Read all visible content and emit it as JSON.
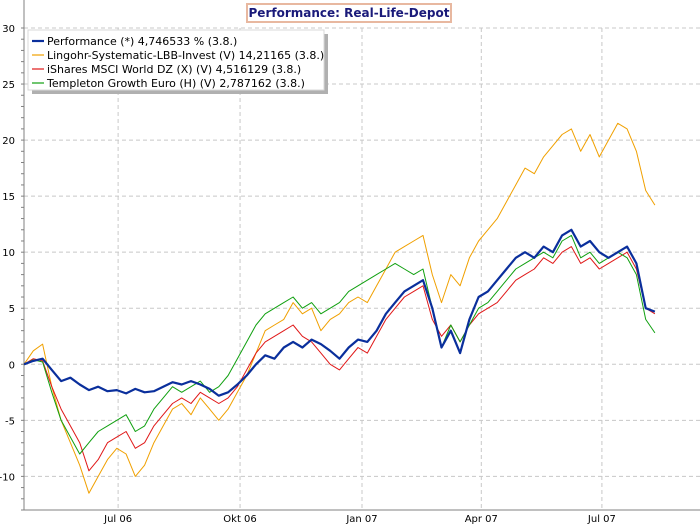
{
  "chart_data": {
    "type": "line",
    "title": "Performance: Real-Life-Depot",
    "xlabel": "",
    "ylabel": "",
    "x_ticks": [
      "Jul 06",
      "Okt 06",
      "Jan 07",
      "Apr 07",
      "Jul 07"
    ],
    "x_range": [
      "2006-04-21",
      "2007-09-13"
    ],
    "ylim": [
      -13,
      30
    ],
    "y_ticks": [
      30,
      25,
      20,
      15,
      10,
      5,
      0,
      -5,
      -10
    ],
    "grid": true,
    "legend_position": "top-left",
    "series": [
      {
        "name": "Performance (*) 4,746533 % (3.8.)",
        "color": "#0a2f9c",
        "bold": true,
        "points": [
          [
            "2006-04-21",
            0.0
          ],
          [
            "2006-04-28",
            0.3
          ],
          [
            "2006-05-05",
            0.5
          ],
          [
            "2006-05-12",
            -0.5
          ],
          [
            "2006-05-19",
            -1.5
          ],
          [
            "2006-05-26",
            -1.2
          ],
          [
            "2006-06-02",
            -1.8
          ],
          [
            "2006-06-09",
            -2.3
          ],
          [
            "2006-06-16",
            -2.0
          ],
          [
            "2006-06-23",
            -2.4
          ],
          [
            "2006-06-30",
            -2.3
          ],
          [
            "2006-07-07",
            -2.6
          ],
          [
            "2006-07-14",
            -2.2
          ],
          [
            "2006-07-21",
            -2.5
          ],
          [
            "2006-07-28",
            -2.4
          ],
          [
            "2006-08-04",
            -2.0
          ],
          [
            "2006-08-11",
            -1.6
          ],
          [
            "2006-08-18",
            -1.8
          ],
          [
            "2006-08-25",
            -1.5
          ],
          [
            "2006-09-01",
            -1.8
          ],
          [
            "2006-09-08",
            -2.2
          ],
          [
            "2006-09-15",
            -2.8
          ],
          [
            "2006-09-22",
            -2.5
          ],
          [
            "2006-09-29",
            -1.8
          ],
          [
            "2006-10-06",
            -1.0
          ],
          [
            "2006-10-13",
            0.0
          ],
          [
            "2006-10-20",
            0.8
          ],
          [
            "2006-10-27",
            0.5
          ],
          [
            "2006-11-03",
            1.5
          ],
          [
            "2006-11-10",
            2.0
          ],
          [
            "2006-11-17",
            1.5
          ],
          [
            "2006-11-24",
            2.2
          ],
          [
            "2006-12-01",
            1.8
          ],
          [
            "2006-12-08",
            1.2
          ],
          [
            "2006-12-15",
            0.5
          ],
          [
            "2006-12-22",
            1.5
          ],
          [
            "2006-12-29",
            2.2
          ],
          [
            "2007-01-05",
            2.0
          ],
          [
            "2007-01-12",
            3.0
          ],
          [
            "2007-01-19",
            4.5
          ],
          [
            "2007-01-26",
            5.5
          ],
          [
            "2007-02-02",
            6.5
          ],
          [
            "2007-02-09",
            7.0
          ],
          [
            "2007-02-16",
            7.5
          ],
          [
            "2007-02-23",
            5.0
          ],
          [
            "2007-03-02",
            1.5
          ],
          [
            "2007-03-09",
            3.0
          ],
          [
            "2007-03-16",
            1.0
          ],
          [
            "2007-03-23",
            4.0
          ],
          [
            "2007-03-30",
            6.0
          ],
          [
            "2007-04-06",
            6.5
          ],
          [
            "2007-04-13",
            7.5
          ],
          [
            "2007-04-20",
            8.5
          ],
          [
            "2007-04-27",
            9.5
          ],
          [
            "2007-05-04",
            10.0
          ],
          [
            "2007-05-11",
            9.5
          ],
          [
            "2007-05-18",
            10.5
          ],
          [
            "2007-05-25",
            10.0
          ],
          [
            "2007-06-01",
            11.5
          ],
          [
            "2007-06-08",
            12.0
          ],
          [
            "2007-06-15",
            10.5
          ],
          [
            "2007-06-22",
            11.0
          ],
          [
            "2007-06-29",
            10.0
          ],
          [
            "2007-07-06",
            9.5
          ],
          [
            "2007-07-13",
            10.0
          ],
          [
            "2007-07-20",
            10.5
          ],
          [
            "2007-07-27",
            9.0
          ],
          [
            "2007-08-03",
            5.0
          ],
          [
            "2007-08-10",
            4.7
          ]
        ]
      },
      {
        "name": "Lingohr-Systematic-LBB-Invest (V) 14,21165 (3.8.)",
        "color": "#f0a000",
        "bold": false,
        "points": [
          [
            "2006-04-21",
            0.0
          ],
          [
            "2006-04-28",
            1.2
          ],
          [
            "2006-05-05",
            1.8
          ],
          [
            "2006-05-12",
            -2.0
          ],
          [
            "2006-05-19",
            -5.0
          ],
          [
            "2006-05-26",
            -7.0
          ],
          [
            "2006-06-02",
            -9.0
          ],
          [
            "2006-06-09",
            -11.5
          ],
          [
            "2006-06-16",
            -10.0
          ],
          [
            "2006-06-23",
            -8.5
          ],
          [
            "2006-06-30",
            -7.5
          ],
          [
            "2006-07-07",
            -8.0
          ],
          [
            "2006-07-14",
            -10.0
          ],
          [
            "2006-07-21",
            -9.0
          ],
          [
            "2006-07-28",
            -7.0
          ],
          [
            "2006-08-04",
            -5.5
          ],
          [
            "2006-08-11",
            -4.0
          ],
          [
            "2006-08-18",
            -3.5
          ],
          [
            "2006-08-25",
            -4.5
          ],
          [
            "2006-09-01",
            -3.0
          ],
          [
            "2006-09-08",
            -4.0
          ],
          [
            "2006-09-15",
            -5.0
          ],
          [
            "2006-09-22",
            -4.0
          ],
          [
            "2006-09-29",
            -2.5
          ],
          [
            "2006-10-06",
            -1.0
          ],
          [
            "2006-10-13",
            1.0
          ],
          [
            "2006-10-20",
            3.0
          ],
          [
            "2006-10-27",
            3.5
          ],
          [
            "2006-11-03",
            4.0
          ],
          [
            "2006-11-10",
            5.5
          ],
          [
            "2006-11-17",
            4.5
          ],
          [
            "2006-11-24",
            5.0
          ],
          [
            "2006-12-01",
            3.0
          ],
          [
            "2006-12-08",
            4.0
          ],
          [
            "2006-12-15",
            4.5
          ],
          [
            "2006-12-22",
            5.5
          ],
          [
            "2006-12-29",
            6.0
          ],
          [
            "2007-01-05",
            5.5
          ],
          [
            "2007-01-12",
            7.0
          ],
          [
            "2007-01-19",
            8.5
          ],
          [
            "2007-01-26",
            10.0
          ],
          [
            "2007-02-02",
            10.5
          ],
          [
            "2007-02-09",
            11.0
          ],
          [
            "2007-02-16",
            11.5
          ],
          [
            "2007-02-23",
            8.0
          ],
          [
            "2007-03-02",
            5.5
          ],
          [
            "2007-03-09",
            8.0
          ],
          [
            "2007-03-16",
            7.0
          ],
          [
            "2007-03-23",
            9.5
          ],
          [
            "2007-03-30",
            11.0
          ],
          [
            "2007-04-06",
            12.0
          ],
          [
            "2007-04-13",
            13.0
          ],
          [
            "2007-04-20",
            14.5
          ],
          [
            "2007-04-27",
            16.0
          ],
          [
            "2007-05-04",
            17.5
          ],
          [
            "2007-05-11",
            17.0
          ],
          [
            "2007-05-18",
            18.5
          ],
          [
            "2007-05-25",
            19.5
          ],
          [
            "2007-06-01",
            20.5
          ],
          [
            "2007-06-08",
            21.0
          ],
          [
            "2007-06-15",
            19.0
          ],
          [
            "2007-06-22",
            20.5
          ],
          [
            "2007-06-29",
            18.5
          ],
          [
            "2007-07-06",
            20.0
          ],
          [
            "2007-07-13",
            21.5
          ],
          [
            "2007-07-20",
            21.0
          ],
          [
            "2007-07-27",
            19.0
          ],
          [
            "2007-08-03",
            15.5
          ],
          [
            "2007-08-10",
            14.2
          ]
        ]
      },
      {
        "name": "iShares MSCI World DZ (X) (V) 4,516129 (3.8.)",
        "color": "#e01818",
        "bold": false,
        "points": [
          [
            "2006-04-21",
            0.0
          ],
          [
            "2006-04-28",
            0.5
          ],
          [
            "2006-05-05",
            0.3
          ],
          [
            "2006-05-12",
            -2.0
          ],
          [
            "2006-05-19",
            -4.0
          ],
          [
            "2006-05-26",
            -5.5
          ],
          [
            "2006-06-02",
            -7.0
          ],
          [
            "2006-06-09",
            -9.5
          ],
          [
            "2006-06-16",
            -8.5
          ],
          [
            "2006-06-23",
            -7.0
          ],
          [
            "2006-06-30",
            -6.5
          ],
          [
            "2006-07-07",
            -6.0
          ],
          [
            "2006-07-14",
            -7.5
          ],
          [
            "2006-07-21",
            -7.0
          ],
          [
            "2006-07-28",
            -5.5
          ],
          [
            "2006-08-04",
            -4.5
          ],
          [
            "2006-08-11",
            -3.5
          ],
          [
            "2006-08-18",
            -3.0
          ],
          [
            "2006-08-25",
            -3.5
          ],
          [
            "2006-09-01",
            -2.5
          ],
          [
            "2006-09-08",
            -3.0
          ],
          [
            "2006-09-15",
            -3.5
          ],
          [
            "2006-09-22",
            -3.0
          ],
          [
            "2006-09-29",
            -2.0
          ],
          [
            "2006-10-06",
            -0.5
          ],
          [
            "2006-10-13",
            1.0
          ],
          [
            "2006-10-20",
            2.0
          ],
          [
            "2006-10-27",
            2.5
          ],
          [
            "2006-11-03",
            3.0
          ],
          [
            "2006-11-10",
            3.5
          ],
          [
            "2006-11-17",
            2.5
          ],
          [
            "2006-11-24",
            2.0
          ],
          [
            "2006-12-01",
            1.0
          ],
          [
            "2006-12-08",
            0.0
          ],
          [
            "2006-12-15",
            -0.5
          ],
          [
            "2006-12-22",
            0.5
          ],
          [
            "2006-12-29",
            1.5
          ],
          [
            "2007-01-05",
            1.0
          ],
          [
            "2007-01-12",
            2.5
          ],
          [
            "2007-01-19",
            4.0
          ],
          [
            "2007-01-26",
            5.0
          ],
          [
            "2007-02-02",
            6.0
          ],
          [
            "2007-02-09",
            6.5
          ],
          [
            "2007-02-16",
            7.0
          ],
          [
            "2007-02-23",
            4.0
          ],
          [
            "2007-03-02",
            2.5
          ],
          [
            "2007-03-09",
            3.5
          ],
          [
            "2007-03-16",
            2.0
          ],
          [
            "2007-03-23",
            3.5
          ],
          [
            "2007-03-30",
            4.5
          ],
          [
            "2007-04-06",
            5.0
          ],
          [
            "2007-04-13",
            5.5
          ],
          [
            "2007-04-20",
            6.5
          ],
          [
            "2007-04-27",
            7.5
          ],
          [
            "2007-05-04",
            8.0
          ],
          [
            "2007-05-11",
            8.5
          ],
          [
            "2007-05-18",
            9.5
          ],
          [
            "2007-05-25",
            9.0
          ],
          [
            "2007-06-01",
            10.0
          ],
          [
            "2007-06-08",
            10.5
          ],
          [
            "2007-06-15",
            9.0
          ],
          [
            "2007-06-22",
            9.5
          ],
          [
            "2007-06-29",
            8.5
          ],
          [
            "2007-07-06",
            9.0
          ],
          [
            "2007-07-13",
            9.5
          ],
          [
            "2007-07-20",
            10.0
          ],
          [
            "2007-07-27",
            8.5
          ],
          [
            "2007-08-03",
            5.0
          ],
          [
            "2007-08-10",
            4.5
          ]
        ]
      },
      {
        "name": "Templeton Growth Euro (H) (V) 2,787162 (3.8.)",
        "color": "#10a010",
        "bold": false,
        "points": [
          [
            "2006-04-21",
            0.0
          ],
          [
            "2006-04-28",
            0.4
          ],
          [
            "2006-05-05",
            0.2
          ],
          [
            "2006-05-12",
            -2.5
          ],
          [
            "2006-05-19",
            -5.0
          ],
          [
            "2006-05-26",
            -6.5
          ],
          [
            "2006-06-02",
            -8.0
          ],
          [
            "2006-06-09",
            -7.0
          ],
          [
            "2006-06-16",
            -6.0
          ],
          [
            "2006-06-23",
            -5.5
          ],
          [
            "2006-06-30",
            -5.0
          ],
          [
            "2006-07-07",
            -4.5
          ],
          [
            "2006-07-14",
            -6.0
          ],
          [
            "2006-07-21",
            -5.5
          ],
          [
            "2006-07-28",
            -4.0
          ],
          [
            "2006-08-04",
            -3.0
          ],
          [
            "2006-08-11",
            -2.0
          ],
          [
            "2006-08-18",
            -2.5
          ],
          [
            "2006-08-25",
            -2.0
          ],
          [
            "2006-09-01",
            -1.5
          ],
          [
            "2006-09-08",
            -2.5
          ],
          [
            "2006-09-15",
            -2.0
          ],
          [
            "2006-09-22",
            -1.0
          ],
          [
            "2006-09-29",
            0.5
          ],
          [
            "2006-10-06",
            2.0
          ],
          [
            "2006-10-13",
            3.5
          ],
          [
            "2006-10-20",
            4.5
          ],
          [
            "2006-10-27",
            5.0
          ],
          [
            "2006-11-03",
            5.5
          ],
          [
            "2006-11-10",
            6.0
          ],
          [
            "2006-11-17",
            5.0
          ],
          [
            "2006-11-24",
            5.5
          ],
          [
            "2006-12-01",
            4.5
          ],
          [
            "2006-12-08",
            5.0
          ],
          [
            "2006-12-15",
            5.5
          ],
          [
            "2006-12-22",
            6.5
          ],
          [
            "2006-12-29",
            7.0
          ],
          [
            "2007-01-05",
            7.5
          ],
          [
            "2007-01-12",
            8.0
          ],
          [
            "2007-01-19",
            8.5
          ],
          [
            "2007-01-26",
            9.0
          ],
          [
            "2007-02-02",
            8.5
          ],
          [
            "2007-02-09",
            8.0
          ],
          [
            "2007-02-16",
            8.5
          ],
          [
            "2007-02-23",
            5.0
          ],
          [
            "2007-03-02",
            1.5
          ],
          [
            "2007-03-09",
            3.5
          ],
          [
            "2007-03-16",
            2.0
          ],
          [
            "2007-03-23",
            3.5
          ],
          [
            "2007-03-30",
            5.0
          ],
          [
            "2007-04-06",
            5.5
          ],
          [
            "2007-04-13",
            6.5
          ],
          [
            "2007-04-20",
            7.5
          ],
          [
            "2007-04-27",
            8.5
          ],
          [
            "2007-05-04",
            9.0
          ],
          [
            "2007-05-11",
            9.5
          ],
          [
            "2007-05-18",
            10.0
          ],
          [
            "2007-05-25",
            9.5
          ],
          [
            "2007-06-01",
            11.0
          ],
          [
            "2007-06-08",
            11.5
          ],
          [
            "2007-06-15",
            9.5
          ],
          [
            "2007-06-22",
            10.0
          ],
          [
            "2007-06-29",
            9.0
          ],
          [
            "2007-07-06",
            9.5
          ],
          [
            "2007-07-13",
            10.0
          ],
          [
            "2007-07-20",
            9.5
          ],
          [
            "2007-07-27",
            8.0
          ],
          [
            "2007-08-03",
            4.0
          ],
          [
            "2007-08-10",
            2.8
          ]
        ]
      }
    ]
  }
}
